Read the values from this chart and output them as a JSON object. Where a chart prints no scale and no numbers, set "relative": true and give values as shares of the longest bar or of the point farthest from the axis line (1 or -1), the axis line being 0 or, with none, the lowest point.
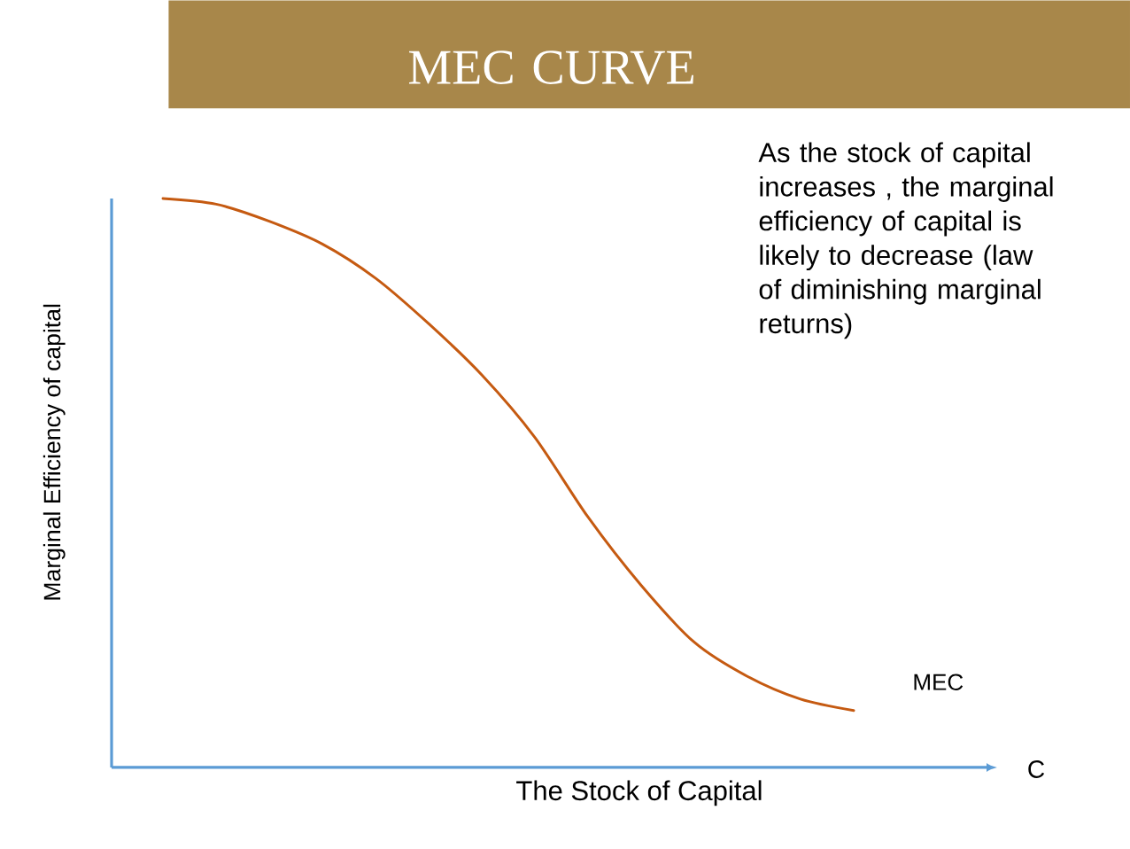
{
  "chart_data": {
    "type": "line",
    "title": "MEC CURVE",
    "xlabel": "The Stock of Capital",
    "ylabel": "Marginal Efficiency of capital",
    "annotations": [
      "As the stock of capital increases , the marginal efficiency of capital is likely to decrease (law of diminishing marginal returns)",
      "C"
    ],
    "relative": true,
    "categories": [
      null,
      null,
      null,
      null,
      null,
      null,
      null,
      null,
      null,
      null,
      null,
      null,
      null,
      null
    ],
    "series": [
      {
        "name": "MEC",
        "color": "#c55a11",
        "values": [
          1,
          0.99,
          0.96,
          0.92,
          0.86,
          0.78,
          0.69,
          0.58,
          0.44,
          0.32,
          0.22,
          0.16,
          0.12,
          0.1
        ]
      }
    ]
  }
}
